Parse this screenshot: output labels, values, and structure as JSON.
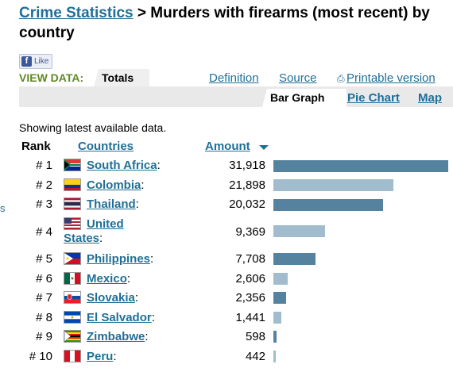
{
  "header": {
    "breadcrumb": "Crime Statistics",
    "title": " > Murders with firearms (most recent) by country"
  },
  "like_button": {
    "label": "Like"
  },
  "view_data": {
    "label": "VIEW DATA:",
    "active_tab": "Totals"
  },
  "top_links": {
    "definition": "Definition",
    "source": "Source",
    "printable": "Printable version"
  },
  "sub_tabs": {
    "bar_graph": "Bar Graph",
    "pie_chart": "Pie Chart",
    "map": "Map"
  },
  "showing_text": "Showing latest available data.",
  "columns": {
    "rank": "Rank",
    "countries": "Countries",
    "amount": "Amount"
  },
  "left_edge_text": "s",
  "table": {
    "rows": [
      {
        "rank": "# 1",
        "country": "South Africa",
        "amount": "31,918",
        "value": 31918,
        "bar_color": "#55839f"
      },
      {
        "rank": "# 2",
        "country": "Colombia",
        "amount": "21,898",
        "value": 21898,
        "bar_color": "#a1bccd"
      },
      {
        "rank": "# 3",
        "country": "Thailand",
        "amount": "20,032",
        "value": 20032,
        "bar_color": "#55839f"
      },
      {
        "rank": "# 4",
        "country_line1": "United",
        "country_line2": "States",
        "amount": "9,369",
        "value": 9369,
        "bar_color": "#a1bccd"
      },
      {
        "rank": "# 5",
        "country": "Philippines",
        "amount": "7,708",
        "value": 7708,
        "bar_color": "#55839f"
      },
      {
        "rank": "# 6",
        "country": "Mexico",
        "amount": "2,606",
        "value": 2606,
        "bar_color": "#a1bccd"
      },
      {
        "rank": "# 7",
        "country": "Slovakia",
        "amount": "2,356",
        "value": 2356,
        "bar_color": "#55839f"
      },
      {
        "rank": "# 8",
        "country": "El Salvador",
        "amount": "1,441",
        "value": 1441,
        "bar_color": "#a1bccd"
      },
      {
        "rank": "# 9",
        "country": "Zimbabwe",
        "amount": "598",
        "value": 598,
        "bar_color": "#55839f"
      },
      {
        "rank": "# 10",
        "country": "Peru",
        "amount": "442",
        "value": 442,
        "bar_color": "#a1bccd"
      }
    ]
  },
  "colors": {
    "link": "#1f6f96",
    "view_data_green": "#5f8a24",
    "bar_dark": "#55839f",
    "bar_light": "#a1bccd"
  }
}
